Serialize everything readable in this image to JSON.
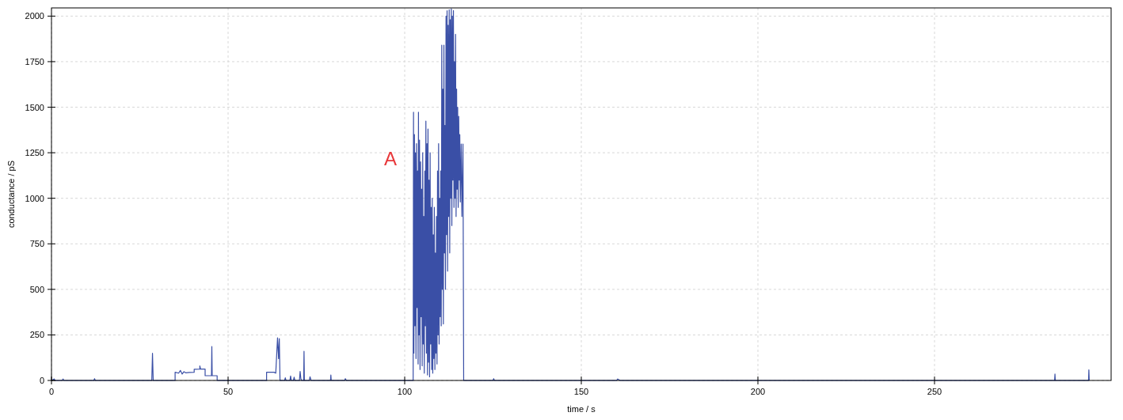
{
  "chart_data": {
    "type": "line",
    "xlabel": "time / s",
    "ylabel": "conductance / pS",
    "xlim": [
      0,
      300
    ],
    "ylim": [
      0,
      2045
    ],
    "xticks": [
      0,
      50,
      100,
      150,
      200,
      250
    ],
    "yticks": [
      0,
      250,
      500,
      750,
      1000,
      1250,
      1500,
      1750,
      2000
    ],
    "grid": true,
    "annotations": [
      "A"
    ],
    "series": [
      {
        "color": "#3a4fa6",
        "x": [
          0,
          0.8,
          1,
          3,
          3.3,
          3.5,
          12,
          12.2,
          12.4,
          28.4,
          28.6,
          28.8,
          35,
          35,
          36,
          36.5,
          37,
          37.5,
          38,
          39,
          40.4,
          40.4,
          42,
          42,
          42.2,
          43.5,
          43.5,
          45.3,
          45.4,
          45.5,
          46.9,
          46.9,
          60.9,
          60.9,
          63,
          63.5,
          64,
          64.3,
          64.5,
          64.7,
          66,
          66.2,
          66.4,
          67.5,
          67.7,
          67.9,
          68.5,
          68.7,
          68.9,
          70.2,
          70.4,
          70.6,
          70.8,
          71.4,
          71.5,
          71.6,
          73,
          73.2,
          73.5,
          79,
          79.1,
          79.2,
          83,
          83.2,
          83.5,
          102.4,
          102.5,
          102.6,
          102.75,
          102.9,
          103.05,
          103.2,
          103.35,
          103.5,
          103.65,
          103.8,
          103.9,
          104.05,
          104.2,
          104.35,
          104.5,
          104.65,
          104.8,
          104.95,
          105.1,
          105.25,
          105.4,
          105.55,
          105.7,
          105.85,
          106,
          106.15,
          106.3,
          106.45,
          106.6,
          106.75,
          106.9,
          107.05,
          107.2,
          107.35,
          107.5,
          107.65,
          107.8,
          107.95,
          108.1,
          108.25,
          108.4,
          108.55,
          108.7,
          108.85,
          109,
          109.15,
          109.3,
          109.45,
          109.6,
          109.75,
          109.9,
          110.05,
          110.2,
          110.35,
          110.5,
          110.65,
          110.8,
          110.95,
          111.1,
          111.25,
          111.4,
          111.55,
          111.7,
          111.85,
          112,
          112.15,
          112.3,
          112.45,
          112.6,
          112.75,
          112.9,
          113.05,
          113.2,
          113.35,
          113.5,
          113.65,
          113.8,
          113.95,
          114.1,
          114.25,
          114.4,
          114.55,
          114.7,
          114.85,
          115,
          115.15,
          115.3,
          115.45,
          115.6,
          115.75,
          116,
          116.2,
          116.5,
          116.7,
          125,
          125.2,
          125.4,
          160,
          160.3,
          161,
          284,
          284.1,
          284.2,
          293.6,
          293.7,
          293.8
        ],
        "values": [
          0,
          8,
          0,
          0,
          8,
          0,
          0,
          10,
          0,
          0,
          149,
          0,
          0,
          45,
          40,
          55,
          35,
          48,
          42,
          44,
          45,
          61,
          62,
          80,
          62,
          62,
          26,
          26,
          186,
          26,
          26,
          0,
          0,
          45,
          45,
          40,
          234,
          120,
          230,
          0,
          0,
          15,
          0,
          0,
          25,
          0,
          0,
          18,
          0,
          0,
          50,
          10,
          0,
          0,
          160,
          0,
          0,
          20,
          0,
          0,
          30,
          0,
          0,
          10,
          0,
          0,
          1472,
          150,
          1350,
          300,
          1250,
          120,
          1300,
          400,
          1150,
          90,
          1472,
          250,
          1320,
          60,
          1200,
          350,
          1050,
          80,
          1250,
          200,
          900,
          40,
          1150,
          300,
          1424,
          150,
          1300,
          30,
          1380,
          100,
          1100,
          20,
          1250,
          200,
          950,
          60,
          1000,
          40,
          800,
          120,
          950,
          60,
          700,
          150,
          900,
          90,
          1150,
          250,
          1300,
          200,
          1000,
          350,
          1150,
          300,
          1841,
          500,
          1600,
          310,
          1841,
          700,
          1400,
          500,
          2000,
          800,
          2029,
          600,
          1950,
          900,
          2035,
          700,
          1980,
          1000,
          2040,
          850,
          2000,
          1100,
          2030,
          950,
          1750,
          1000,
          1900,
          900,
          1600,
          1050,
          1500,
          950,
          1450,
          1100,
          1350,
          980,
          1298,
          900,
          1298,
          0,
          0,
          10,
          0,
          0,
          8,
          0,
          0,
          35,
          0,
          0,
          58,
          0
        ]
      }
    ]
  }
}
